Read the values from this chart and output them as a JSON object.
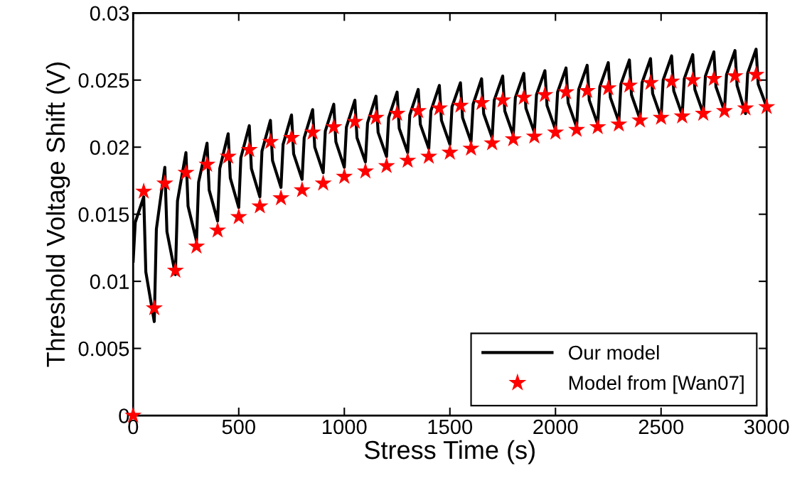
{
  "chart_data": {
    "type": "line",
    "xlabel": "Stress Time (s)",
    "ylabel": "Threshold Voltage Shift (V)",
    "xlim": [
      0,
      3000
    ],
    "ylim": [
      0,
      0.03
    ],
    "xticks": [
      0,
      500,
      1000,
      1500,
      2000,
      2500,
      3000
    ],
    "yticks": [
      0,
      0.005,
      0.01,
      0.015,
      0.02,
      0.025,
      0.03
    ],
    "grid": false,
    "legend": "bottom right",
    "series": [
      {
        "name": "Our model",
        "color": "#000000",
        "marker": "none",
        "line_style": "solid",
        "x": [
          0,
          10,
          50,
          60,
          100,
          110,
          150,
          160,
          200,
          210,
          250,
          260,
          300,
          310,
          350,
          360,
          400,
          410,
          450,
          460,
          500,
          510,
          550,
          560,
          600,
          610,
          650,
          660,
          700,
          710,
          750,
          760,
          800,
          810,
          850,
          860,
          900,
          910,
          950,
          960,
          1000,
          1010,
          1050,
          1060,
          1100,
          1110,
          1150,
          1160,
          1200,
          1210,
          1250,
          1260,
          1300,
          1310,
          1350,
          1360,
          1400,
          1410,
          1450,
          1460,
          1500,
          1510,
          1550,
          1560,
          1600,
          1610,
          1650,
          1660,
          1700,
          1710,
          1750,
          1760,
          1800,
          1810,
          1850,
          1860,
          1900,
          1910,
          1950,
          1960,
          2000,
          2010,
          2050,
          2060,
          2100,
          2110,
          2150,
          2160,
          2200,
          2210,
          2250,
          2260,
          2300,
          2310,
          2350,
          2360,
          2400,
          2410,
          2450,
          2460,
          2500,
          2510,
          2550,
          2560,
          2600,
          2610,
          2650,
          2660,
          2700,
          2710,
          2750,
          2760,
          2800,
          2810,
          2850,
          2860,
          2900,
          2910,
          2950,
          2960,
          3000
        ],
        "values": [
          0.0115,
          0.0144,
          0.0163,
          0.0107,
          0.007,
          0.0139,
          0.0185,
          0.0137,
          0.0105,
          0.016,
          0.0196,
          0.0156,
          0.013,
          0.0174,
          0.0203,
          0.0168,
          0.0145,
          0.0184,
          0.021,
          0.0177,
          0.0155,
          0.0192,
          0.0216,
          0.0184,
          0.0163,
          0.0197,
          0.022,
          0.019,
          0.017,
          0.0202,
          0.0224,
          0.0195,
          0.0176,
          0.0207,
          0.0228,
          0.02,
          0.0181,
          0.0212,
          0.0232,
          0.0204,
          0.0185,
          0.0215,
          0.0235,
          0.0207,
          0.0189,
          0.0218,
          0.0238,
          0.0211,
          0.0193,
          0.0222,
          0.0241,
          0.0214,
          0.0196,
          0.0224,
          0.0243,
          0.0217,
          0.0199,
          0.0227,
          0.0246,
          0.022,
          0.0202,
          0.023,
          0.0248,
          0.0222,
          0.0204,
          0.0232,
          0.0251,
          0.0225,
          0.0207,
          0.0235,
          0.0253,
          0.0227,
          0.0209,
          0.0237,
          0.0255,
          0.0229,
          0.0211,
          0.0239,
          0.0257,
          0.0231,
          0.0213,
          0.0241,
          0.0259,
          0.0233,
          0.0215,
          0.0243,
          0.0261,
          0.0235,
          0.0217,
          0.0245,
          0.0263,
          0.0237,
          0.0219,
          0.0247,
          0.0265,
          0.0239,
          0.0221,
          0.0248,
          0.0266,
          0.024,
          0.0222,
          0.025,
          0.0268,
          0.0242,
          0.0224,
          0.0251,
          0.0269,
          0.0243,
          0.0225,
          0.0253,
          0.0271,
          0.0245,
          0.0227,
          0.0254,
          0.0272,
          0.0246,
          0.0225,
          0.0255,
          0.0273,
          0.0247,
          0.023
        ]
      },
      {
        "name": "Model from [Wan07]",
        "type": "scatter",
        "color": "#ff0000",
        "marker": "star",
        "x": [
          0,
          50,
          100,
          150,
          200,
          250,
          300,
          350,
          400,
          450,
          500,
          550,
          600,
          650,
          700,
          750,
          800,
          850,
          900,
          950,
          1000,
          1050,
          1100,
          1150,
          1200,
          1250,
          1300,
          1350,
          1400,
          1450,
          1500,
          1550,
          1600,
          1650,
          1700,
          1750,
          1800,
          1850,
          1900,
          1950,
          2000,
          2050,
          2100,
          2150,
          2200,
          2250,
          2300,
          2350,
          2400,
          2450,
          2500,
          2550,
          2600,
          2650,
          2700,
          2750,
          2800,
          2850,
          2900,
          2950,
          3000
        ],
        "values": [
          0,
          0.0167,
          0.008,
          0.0173,
          0.0108,
          0.0181,
          0.0126,
          0.0187,
          0.0138,
          0.0193,
          0.0148,
          0.0198,
          0.0156,
          0.0204,
          0.0162,
          0.0207,
          0.0168,
          0.0211,
          0.0173,
          0.0215,
          0.0178,
          0.0219,
          0.0182,
          0.0222,
          0.0186,
          0.0225,
          0.019,
          0.0227,
          0.0193,
          0.0229,
          0.0196,
          0.0231,
          0.0199,
          0.0233,
          0.0203,
          0.0235,
          0.0206,
          0.0237,
          0.0208,
          0.0239,
          0.0211,
          0.0241,
          0.0213,
          0.0242,
          0.0215,
          0.0244,
          0.0217,
          0.0246,
          0.022,
          0.0248,
          0.0222,
          0.0249,
          0.0223,
          0.025,
          0.0225,
          0.0251,
          0.0227,
          0.0253,
          0.0229,
          0.0254,
          0.023
        ]
      }
    ]
  }
}
